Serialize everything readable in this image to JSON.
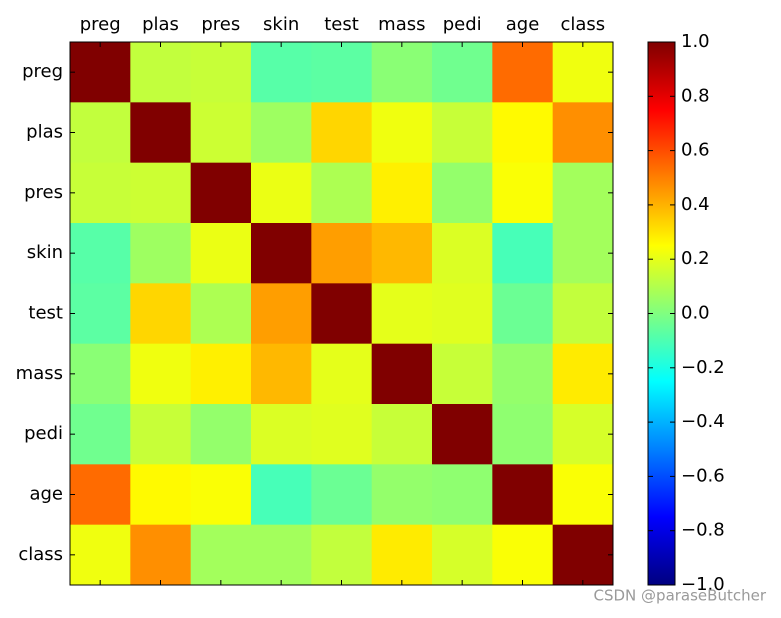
{
  "chart_data": {
    "type": "heatmap",
    "columns": [
      "preg",
      "plas",
      "pres",
      "skin",
      "test",
      "mass",
      "pedi",
      "age",
      "class"
    ],
    "rows": [
      "preg",
      "plas",
      "pres",
      "skin",
      "test",
      "mass",
      "pedi",
      "age",
      "class"
    ],
    "z": [
      [
        1,
        0.13,
        0.14,
        -0.08,
        -0.07,
        0.02,
        -0.03,
        0.54,
        0.22
      ],
      [
        0.13,
        1,
        0.15,
        0.06,
        0.33,
        0.22,
        0.14,
        0.26,
        0.47
      ],
      [
        0.14,
        0.15,
        1,
        0.21,
        0.09,
        0.28,
        0.04,
        0.24,
        0.07
      ],
      [
        -0.08,
        0.06,
        0.21,
        1,
        0.44,
        0.39,
        0.18,
        -0.11,
        0.07
      ],
      [
        -0.07,
        0.33,
        0.09,
        0.44,
        1,
        0.2,
        0.19,
        -0.04,
        0.13
      ],
      [
        0.02,
        0.22,
        0.28,
        0.39,
        0.2,
        1,
        0.14,
        0.04,
        0.29
      ],
      [
        -0.03,
        0.14,
        0.04,
        0.18,
        0.19,
        0.14,
        1,
        0.03,
        0.17
      ],
      [
        0.54,
        0.26,
        0.24,
        -0.11,
        -0.04,
        0.04,
        0.03,
        1,
        0.24
      ],
      [
        0.22,
        0.47,
        0.07,
        0.07,
        0.13,
        0.29,
        0.17,
        0.24,
        1
      ]
    ],
    "colormap": "jet",
    "clim": [
      -1,
      1
    ],
    "cticks": [
      {
        "value": -1,
        "label": "−1.0"
      },
      {
        "value": -0.8,
        "label": "−0.8"
      },
      {
        "value": -0.6,
        "label": "−0.6"
      },
      {
        "value": -0.4,
        "label": "−0.4"
      },
      {
        "value": -0.2,
        "label": "−0.2"
      },
      {
        "value": 0,
        "label": "0.0"
      },
      {
        "value": 0.2,
        "label": "0.2"
      },
      {
        "value": 0.4,
        "label": "0.4"
      },
      {
        "value": 0.6,
        "label": "0.6"
      },
      {
        "value": 0.8,
        "label": "0.8"
      },
      {
        "value": 1,
        "label": "1.0"
      }
    ],
    "watermark": "CSDN @paraseButcher"
  }
}
